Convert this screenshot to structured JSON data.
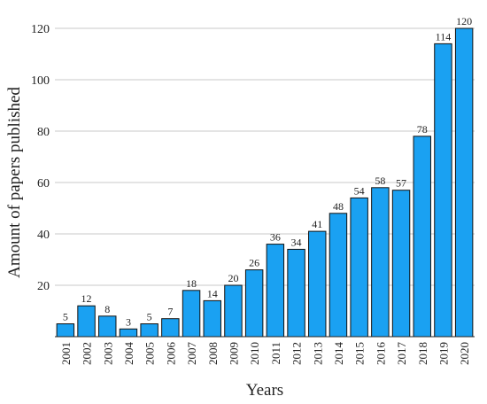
{
  "chart_data": {
    "type": "bar",
    "title": "",
    "xlabel": "Years",
    "ylabel": "Amount of papers published",
    "categories": [
      "2001",
      "2002",
      "2003",
      "2004",
      "2005",
      "2006",
      "2007",
      "2008",
      "2009",
      "2010",
      "2011",
      "2012",
      "2013",
      "2014",
      "2015",
      "2016",
      "2017",
      "2018",
      "2019",
      "2020"
    ],
    "values": [
      5,
      12,
      8,
      3,
      5,
      7,
      18,
      14,
      20,
      26,
      36,
      34,
      41,
      48,
      54,
      58,
      57,
      78,
      114,
      120
    ],
    "ylim": [
      0,
      120
    ],
    "yticks": [
      20,
      40,
      60,
      80,
      100,
      120
    ],
    "grid": true,
    "bar_color": "#1aa1f2",
    "bar_edge_color": "#111111",
    "data_labels": true
  }
}
